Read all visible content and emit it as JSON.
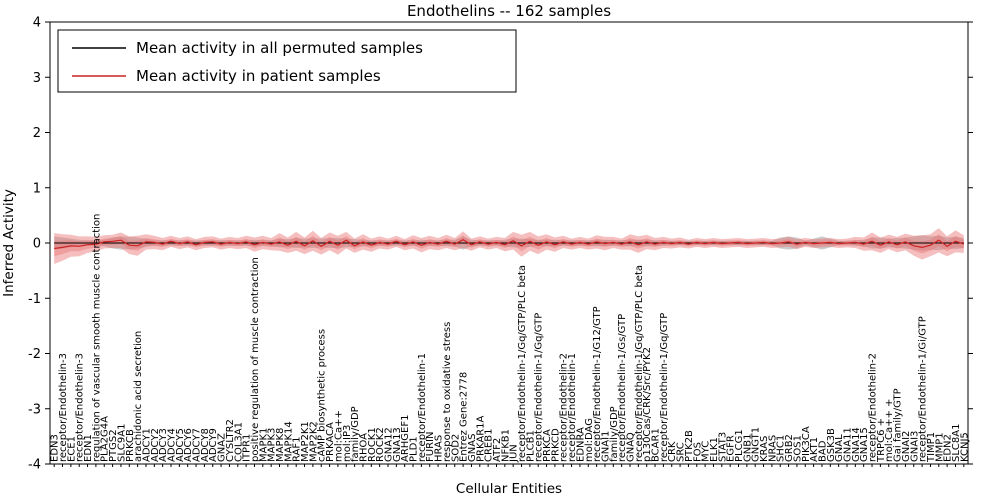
{
  "chart_data": {
    "type": "line",
    "title": "Endothelins -- 162 samples",
    "xlabel": "Cellular Entities",
    "ylabel": "Inferred Activity",
    "ylim": [
      -4,
      4
    ],
    "yticks": [
      -4,
      -3,
      -2,
      -1,
      0,
      1,
      2,
      3,
      4
    ],
    "grid": false,
    "legend_position": "upper left",
    "categories": [
      "EDN3",
      "receptor/Endothelin-3",
      "ECE1",
      "receptor/Endothelin-3",
      "EDN1",
      "regulation of vascular smooth muscle contraction",
      "PLA2G4A",
      "PTGS2",
      "SLC9A1",
      "PRKCB",
      "arachidonic acid secretion",
      "ADCY1",
      "ADCY2",
      "ADCY3",
      "ADCY4",
      "ADCY5",
      "ADCY6",
      "ADCY7",
      "ADCY8",
      "ADCY9",
      "GNAZ",
      "CYSLTR2",
      "COL3A1",
      "ITPR1",
      "positive regulation of muscle contraction",
      "MAPK1",
      "MAPK3",
      "MAPK8",
      "MAPK14",
      "RAF1",
      "MAP2K1",
      "MAP2K2",
      "cAMP biosynthetic process",
      "PRKACA",
      "mol:Ca++",
      "mol:IP3",
      "family/GDP",
      "RHOA",
      "ROCK1",
      "ROCK2",
      "GNA12",
      "GNA13",
      "ARHGEF1",
      "PLD1",
      "receptor/Endothelin-1",
      "FURIN",
      "HRAS",
      "response to oxidative stress",
      "SOD2",
      "Entrez Gene:2778",
      "GNAS",
      "PRKAR1A",
      "CREB1",
      "ATF2",
      "NFKB1",
      "JUN",
      "receptor/Endothelin-1/Gq/GTP/PLC beta",
      "PLCB1",
      "receptor/Endothelin-1/Gq/GTP",
      "PRKCA",
      "PRKCD",
      "receptor/Endothelin-2",
      "receptor/Endothelin-1",
      "EDNRA",
      "mol:DAG",
      "receptor/Endothelin-1/G12/GTP",
      "GNAI1",
      "family/GDP",
      "receptor/Endothelin-1/Gs/GTP",
      "GNAQ",
      "receptor/Endothelin-1/Gq/GTP/PLC beta",
      "p130Cas/CRK/Src/PYK2",
      "BCAR1",
      "receptor/Endothelin-1/Gq/GTP",
      "CRK",
      "SRC",
      "PTK2B",
      "FOS",
      "MYC",
      "ELK1",
      "STAT3",
      "EGFR",
      "PLCG1",
      "GNB1",
      "GNGT1",
      "KRAS",
      "NRAS",
      "SHC1",
      "GRB2",
      "SOS1",
      "PIK3CA",
      "AKT1",
      "BAD",
      "GSK3B",
      "GNAL",
      "GNA11",
      "GNA14",
      "GNA15",
      "receptor/Endothelin-2",
      "TRPC6 +",
      "mol:Ca++ +",
      "Gai family/GTP",
      "GNAI2",
      "GNAI3",
      "receptor/Endothelin-1/Gi/GTP",
      "TIMP1",
      "MMP1",
      "EDN2",
      "SLC8A1",
      "KCNJ5"
    ],
    "series": [
      {
        "name": "Mean activity in all permuted samples",
        "color": "#000000",
        "constant": 0.0
      },
      {
        "name": "Mean activity in patient samples",
        "color": "#cc2222",
        "band_color": "#e87070",
        "values": [
          -0.1,
          -0.08,
          -0.05,
          -0.06,
          -0.03,
          -0.02,
          0.02,
          0.03,
          0.05,
          -0.04,
          -0.05,
          0.02,
          0.01,
          -0.02,
          0.03,
          -0.01,
          0.02,
          -0.03,
          0.01,
          0.02,
          -0.02,
          0.01,
          -0.01,
          0.02,
          -0.03,
          0.01,
          -0.02,
          0.02,
          -0.04,
          0.03,
          -0.05,
          0.04,
          -0.06,
          0.03,
          -0.04,
          0.05,
          -0.05,
          0.02,
          -0.04,
          0.01,
          -0.02,
          0.03,
          -0.03,
          0.02,
          -0.04,
          0.01,
          -0.02,
          0.03,
          -0.02,
          0.06,
          -0.03,
          0.02,
          -0.02,
          0.01,
          -0.03,
          0.04,
          -0.05,
          0.03,
          -0.04,
          0.02,
          -0.03,
          0.02,
          -0.02,
          0.01,
          -0.02,
          0.02,
          -0.01,
          0.01,
          -0.02,
          0.02,
          -0.03,
          0.02,
          -0.02,
          0.01,
          -0.01,
          0.01,
          -0.02,
          0.01,
          -0.01,
          0.01,
          -0.01,
          0.0,
          0.01,
          -0.01,
          0.0,
          0.01,
          -0.01,
          0.0,
          0.02,
          -0.02,
          0.01,
          -0.01,
          0.0,
          0.01,
          -0.01,
          0.0,
          0.01,
          -0.02,
          0.03,
          -0.04,
          0.02,
          -0.03,
          0.02,
          -0.05,
          -0.08,
          -0.04,
          0.05,
          -0.06,
          0.03,
          -0.02
        ],
        "band_halfwidth": [
          0.28,
          0.24,
          0.2,
          0.18,
          0.15,
          0.13,
          0.12,
          0.12,
          0.14,
          0.16,
          0.18,
          0.14,
          0.12,
          0.11,
          0.1,
          0.1,
          0.1,
          0.1,
          0.1,
          0.1,
          0.1,
          0.1,
          0.1,
          0.11,
          0.13,
          0.12,
          0.11,
          0.16,
          0.14,
          0.17,
          0.15,
          0.18,
          0.15,
          0.16,
          0.17,
          0.15,
          0.13,
          0.14,
          0.12,
          0.11,
          0.1,
          0.1,
          0.1,
          0.12,
          0.13,
          0.12,
          0.11,
          0.12,
          0.11,
          0.15,
          0.11,
          0.1,
          0.1,
          0.1,
          0.12,
          0.16,
          0.2,
          0.17,
          0.16,
          0.14,
          0.13,
          0.11,
          0.1,
          0.1,
          0.1,
          0.12,
          0.12,
          0.1,
          0.1,
          0.14,
          0.15,
          0.13,
          0.11,
          0.1,
          0.09,
          0.09,
          0.08,
          0.08,
          0.08,
          0.08,
          0.08,
          0.08,
          0.08,
          0.08,
          0.08,
          0.08,
          0.08,
          0.08,
          0.09,
          0.09,
          0.08,
          0.08,
          0.08,
          0.08,
          0.08,
          0.08,
          0.1,
          0.12,
          0.16,
          0.14,
          0.13,
          0.14,
          0.15,
          0.18,
          0.22,
          0.2,
          0.22,
          0.18,
          0.2,
          0.16
        ]
      }
    ],
    "permuted_band_color": "#999999",
    "permuted_band_halfwidth": [
      0.12,
      0.1,
      0.08,
      0.06,
      0.05,
      0.05,
      0.06,
      0.1,
      0.12,
      0.11,
      0.1,
      0.07,
      0.05,
      0.05,
      0.05,
      0.05,
      0.05,
      0.05,
      0.05,
      0.05,
      0.05,
      0.05,
      0.05,
      0.05,
      0.06,
      0.05,
      0.05,
      0.08,
      0.07,
      0.09,
      0.08,
      0.09,
      0.08,
      0.09,
      0.09,
      0.08,
      0.07,
      0.06,
      0.05,
      0.05,
      0.05,
      0.05,
      0.05,
      0.05,
      0.06,
      0.05,
      0.05,
      0.06,
      0.06,
      0.12,
      0.06,
      0.05,
      0.05,
      0.05,
      0.06,
      0.08,
      0.08,
      0.07,
      0.06,
      0.06,
      0.06,
      0.05,
      0.05,
      0.05,
      0.05,
      0.06,
      0.06,
      0.05,
      0.05,
      0.06,
      0.06,
      0.06,
      0.05,
      0.05,
      0.04,
      0.04,
      0.04,
      0.04,
      0.04,
      0.04,
      0.04,
      0.04,
      0.04,
      0.04,
      0.04,
      0.04,
      0.04,
      0.1,
      0.12,
      0.1,
      0.04,
      0.08,
      0.12,
      0.08,
      0.04,
      0.04,
      0.05,
      0.06,
      0.1,
      0.1,
      0.08,
      0.09,
      0.1,
      0.12,
      0.14,
      0.12,
      0.13,
      0.1,
      0.11,
      0.09
    ]
  }
}
